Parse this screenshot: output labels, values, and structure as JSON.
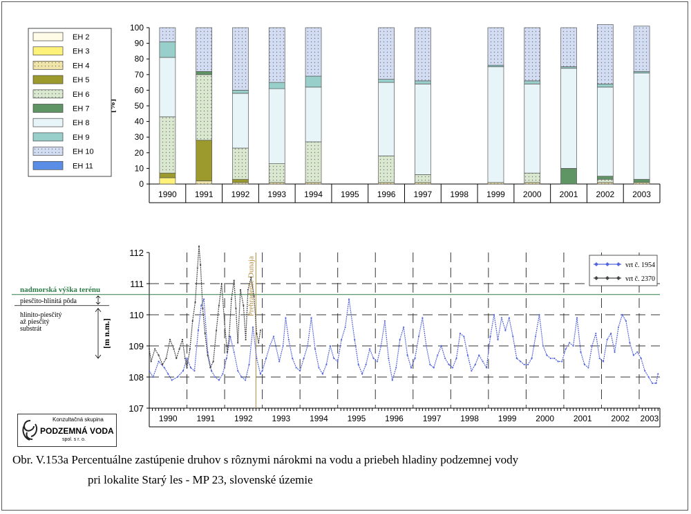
{
  "caption": {
    "line1": "Obr. V.153a Percentuálne zastúpenie druhov s rôznymi nárokmi na vodu a priebeh hladiny podzemnej vody",
    "line2": "pri lokalite Starý les - MP 23, slovenské územie"
  },
  "logo": {
    "line1": "Konzultačná skupina",
    "line2": "PODZEMNÁ VODA",
    "line3": "spol. s r. o."
  },
  "chart_data": [
    {
      "type": "bar",
      "stacked": true,
      "ylabel": "[%]",
      "ylim": [
        0,
        100
      ],
      "yticks": [
        0,
        10,
        20,
        30,
        40,
        50,
        60,
        70,
        80,
        90,
        100
      ],
      "categories": [
        "1990",
        "1991",
        "1992",
        "1993",
        "1994",
        "1995",
        "1996",
        "1997",
        "1998",
        "1999",
        "2000",
        "2001",
        "2002",
        "2003"
      ],
      "legend_position": "left",
      "series": [
        {
          "name": "EH 2",
          "color": "#fffbe6",
          "values": [
            0,
            0,
            0,
            0,
            0,
            0,
            0,
            0,
            0,
            0,
            0,
            0,
            0,
            0
          ]
        },
        {
          "name": "EH 3",
          "color": "#fff27a",
          "values": [
            4,
            0,
            0,
            0,
            0,
            0,
            0,
            0,
            0,
            0,
            0,
            0,
            0,
            0
          ]
        },
        {
          "name": "EH 4",
          "color": "#f0e4a8",
          "values": [
            0,
            2,
            1,
            1,
            1,
            0,
            1,
            1,
            0,
            1,
            1,
            0,
            1,
            1
          ]
        },
        {
          "name": "EH 5",
          "color": "#9c9a2c",
          "values": [
            3,
            26,
            2,
            0,
            0,
            0,
            0,
            0,
            0,
            0,
            0,
            0,
            0,
            0
          ]
        },
        {
          "name": "EH 6",
          "color": "#d9e8cf",
          "values": [
            36,
            42,
            20,
            12,
            26,
            0,
            17,
            5,
            0,
            0,
            6,
            0,
            2,
            0
          ]
        },
        {
          "name": "EH 7",
          "color": "#5f9465",
          "values": [
            0,
            2,
            0,
            0,
            0,
            0,
            0,
            0,
            0,
            0,
            0,
            10,
            2,
            2
          ]
        },
        {
          "name": "EH 8",
          "color": "#e7f5f8",
          "values": [
            38,
            0,
            35,
            48,
            35,
            0,
            47,
            58,
            0,
            74,
            57,
            64,
            57,
            68
          ]
        },
        {
          "name": "EH 9",
          "color": "#98cfca",
          "values": [
            10,
            0,
            2,
            4,
            7,
            0,
            2,
            2,
            0,
            1,
            2,
            1,
            2,
            1
          ]
        },
        {
          "name": "EH 10",
          "color": "#d2ddf4",
          "values": [
            9,
            28,
            40,
            35,
            31,
            0,
            33,
            34,
            0,
            24,
            34,
            25,
            38,
            29
          ]
        },
        {
          "name": "EH 11",
          "color": "#5a8ee6",
          "values": [
            0,
            0,
            0,
            0,
            0,
            0,
            0,
            0,
            0,
            0,
            0,
            0,
            0,
            0
          ]
        }
      ]
    },
    {
      "type": "line",
      "ylabel": "[m n.m.]",
      "ylim": [
        107,
        112
      ],
      "yticks": [
        107,
        108,
        109,
        110,
        111,
        112
      ],
      "xlim": [
        1990,
        2003.55
      ],
      "x_tick_labels": [
        "1990",
        "1991",
        "1992",
        "1993",
        "1994",
        "1995",
        "1996",
        "1997",
        "1998",
        "1999",
        "2000",
        "2001",
        "2002",
        "2003"
      ],
      "grid": "dashed",
      "legend_position": "top-right",
      "reference_line": {
        "value": 110.65,
        "label": "nadmorská výška terénu",
        "color": "#2e7d46"
      },
      "event_line": {
        "x": 1992.83,
        "label": "Prehradenie Dunaja",
        "color": "#b08a3a"
      },
      "soil_labels": {
        "top": "piesčito-hlinitá pôda",
        "bottom_1": "hlinito-piesčitý",
        "bottom_2": "až piesčitý",
        "bottom_3": "substrát"
      },
      "series": [
        {
          "name": "vrt č. 1954",
          "color": "#5566dd",
          "x": [
            1990.0,
            1990.1,
            1990.25,
            1990.4,
            1990.5,
            1990.6,
            1990.75,
            1990.9,
            1991.0,
            1991.1,
            1991.2,
            1991.3,
            1991.38,
            1991.45,
            1991.55,
            1991.65,
            1991.75,
            1991.85,
            1991.95,
            1992.05,
            1992.15,
            1992.25,
            1992.35,
            1992.45,
            1992.55,
            1992.65,
            1992.75,
            1992.85,
            1992.95,
            1993.0,
            1993.1,
            1993.2,
            1993.3,
            1993.45,
            1993.55,
            1993.62,
            1993.7,
            1993.8,
            1993.9,
            1994.0,
            1994.1,
            1994.2,
            1994.3,
            1994.4,
            1994.5,
            1994.6,
            1994.7,
            1994.8,
            1994.9,
            1995.0,
            1995.1,
            1995.2,
            1995.3,
            1995.45,
            1995.55,
            1995.65,
            1995.75,
            1995.85,
            1995.95,
            1996.05,
            1996.15,
            1996.25,
            1996.35,
            1996.45,
            1996.55,
            1996.65,
            1996.75,
            1996.85,
            1996.95,
            1997.05,
            1997.15,
            1997.25,
            1997.35,
            1997.45,
            1997.55,
            1997.65,
            1997.75,
            1997.85,
            1997.95,
            1998.05,
            1998.15,
            1998.25,
            1998.35,
            1998.45,
            1998.55,
            1998.65,
            1998.75,
            1998.85,
            1998.95,
            1999.05,
            1999.15,
            1999.25,
            1999.35,
            1999.45,
            1999.55,
            1999.65,
            1999.75,
            1999.85,
            1999.95,
            2000.05,
            2000.15,
            2000.25,
            2000.35,
            2000.45,
            2000.55,
            2000.65,
            2000.75,
            2000.85,
            2000.95,
            2001.05,
            2001.15,
            2001.25,
            2001.35,
            2001.45,
            2001.55,
            2001.65,
            2001.75,
            2001.85,
            2001.95,
            2002.05,
            2002.15,
            2002.25,
            2002.35,
            2002.45,
            2002.55,
            2002.65,
            2002.75,
            2002.85,
            2002.95,
            2003.05,
            2003.15,
            2003.25,
            2003.35,
            2003.45,
            2003.5
          ],
          "y": [
            108.2,
            108.0,
            108.5,
            108.3,
            108.1,
            107.9,
            108.0,
            108.2,
            108.6,
            108.3,
            108.2,
            109.5,
            110.3,
            110.5,
            108.8,
            108.2,
            108.0,
            107.9,
            108.1,
            108.6,
            109.3,
            108.8,
            108.2,
            108.0,
            107.9,
            108.4,
            109.6,
            108.6,
            108.1,
            108.2,
            108.6,
            109.0,
            109.3,
            108.5,
            109.0,
            109.9,
            109.2,
            108.6,
            108.3,
            108.2,
            108.6,
            109.0,
            109.9,
            108.9,
            108.3,
            108.1,
            108.4,
            109.0,
            108.6,
            108.5,
            109.2,
            109.6,
            110.5,
            109.2,
            108.4,
            108.1,
            108.4,
            108.9,
            108.6,
            108.5,
            109.0,
            109.8,
            108.6,
            107.9,
            108.3,
            109.2,
            109.6,
            108.7,
            108.3,
            108.6,
            109.3,
            109.9,
            109.0,
            108.4,
            108.3,
            108.7,
            109.0,
            108.6,
            108.4,
            108.3,
            108.6,
            109.4,
            109.3,
            108.7,
            108.2,
            108.4,
            108.7,
            108.5,
            108.3,
            109.3,
            110.0,
            109.2,
            109.9,
            109.5,
            109.9,
            109.3,
            108.6,
            108.5,
            108.4,
            108.4,
            108.6,
            109.3,
            110.0,
            109.0,
            108.7,
            108.6,
            108.6,
            108.5,
            108.5,
            108.9,
            109.1,
            109.0,
            109.9,
            108.8,
            108.4,
            108.3,
            109.0,
            109.4,
            108.6,
            108.5,
            109.2,
            109.4,
            108.8,
            109.6,
            110.0,
            109.8,
            109.1,
            108.7,
            108.8,
            108.6,
            108.2,
            108.0,
            107.8,
            107.8,
            108.1
          ]
        },
        {
          "name": "vrt č. 2370",
          "color": "#444444",
          "x": [
            1990.0,
            1990.05,
            1990.15,
            1990.25,
            1990.35,
            1990.45,
            1990.55,
            1990.65,
            1990.72,
            1990.8,
            1990.88,
            1990.95,
            1991.0,
            1991.08,
            1991.15,
            1991.22,
            1991.28,
            1991.32,
            1991.36,
            1991.42,
            1991.48,
            1991.55,
            1991.62,
            1991.7,
            1991.78,
            1991.85,
            1991.92,
            1992.0,
            1992.07,
            1992.12,
            1992.18,
            1992.25,
            1992.3,
            1992.35,
            1992.42,
            1992.5,
            1992.56,
            1992.62,
            1992.7,
            1992.78,
            1992.85,
            1992.9,
            1992.95
          ],
          "y": [
            108.9,
            108.5,
            108.9,
            108.7,
            108.4,
            108.6,
            109.2,
            108.9,
            108.6,
            108.9,
            109.2,
            108.6,
            108.3,
            108.9,
            109.8,
            110.4,
            111.5,
            112.2,
            111.6,
            110.2,
            109.4,
            108.7,
            108.3,
            108.5,
            109.5,
            110.3,
            111.0,
            109.7,
            108.8,
            109.3,
            110.5,
            111.1,
            110.2,
            109.1,
            110.8,
            110.3,
            109.2,
            110.8,
            111.2,
            110.6,
            109.4,
            109.1,
            109.5
          ]
        }
      ]
    }
  ]
}
